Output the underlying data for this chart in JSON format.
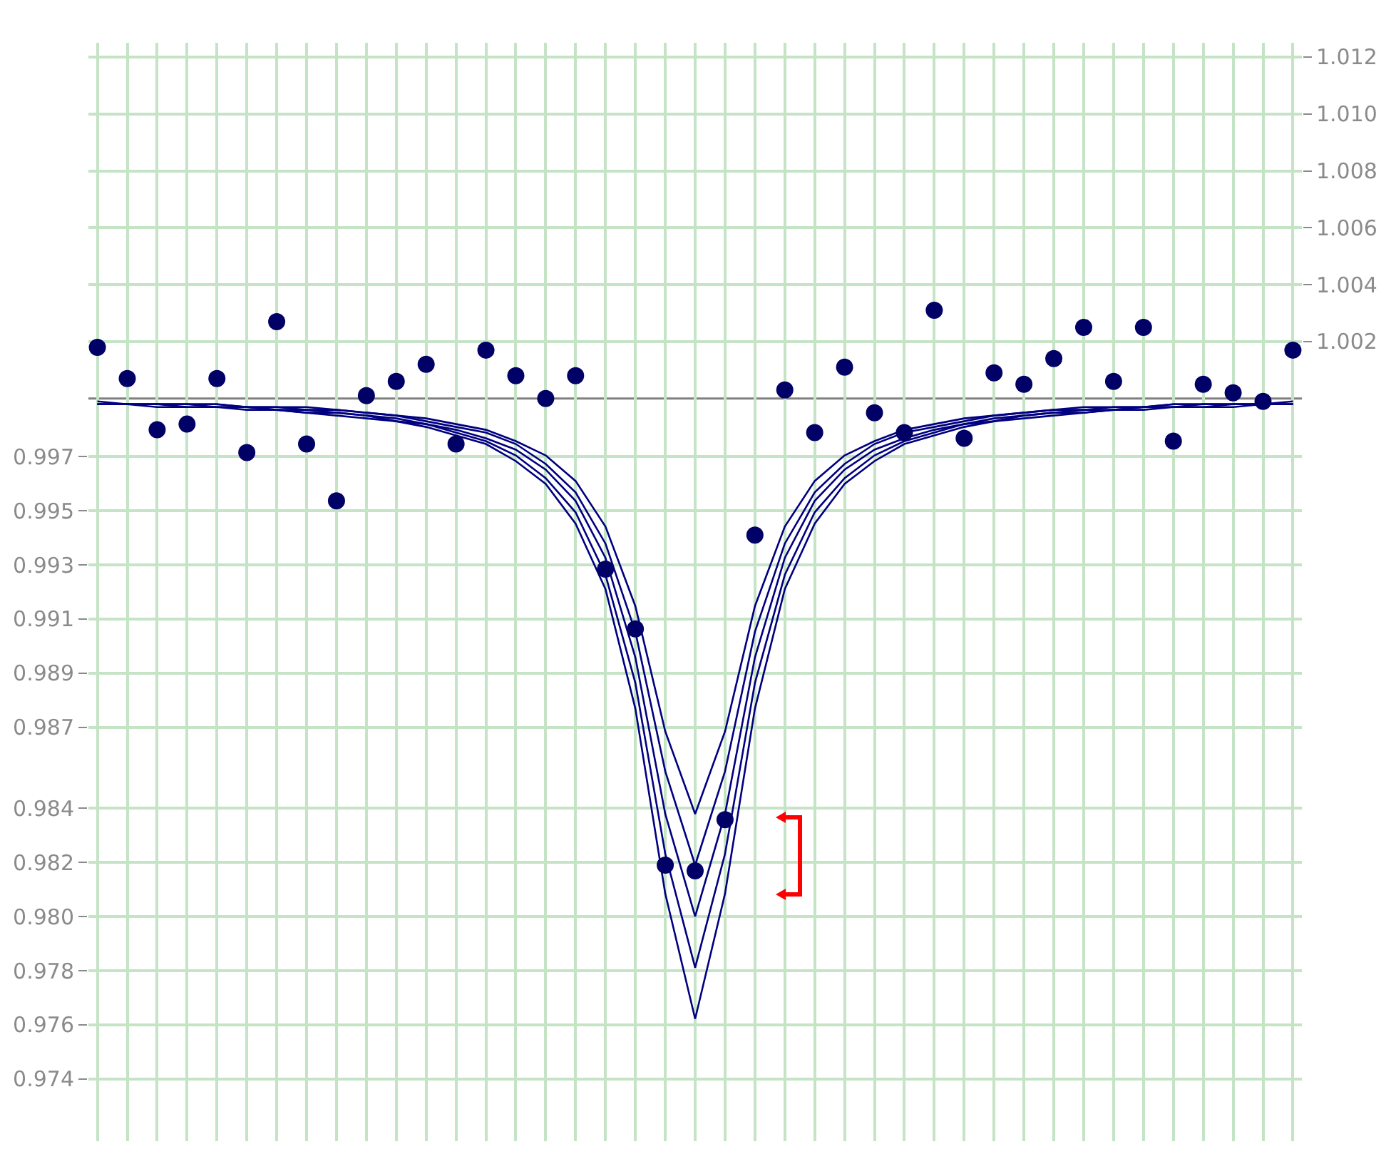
{
  "chart_data": {
    "type": "scatter",
    "categories": [
      null,
      null,
      null,
      null,
      null,
      null,
      null,
      null,
      null,
      null,
      null,
      null,
      null,
      null,
      null,
      null,
      null,
      null,
      null,
      null,
      null,
      null,
      null,
      null,
      null,
      null,
      null,
      null,
      null,
      null,
      null,
      null,
      null,
      null,
      null,
      null,
      null,
      null,
      null,
      null,
      null
    ],
    "ylim": [
      0.9717,
      1.0123
    ],
    "yticks": [
      0.997,
      0.995,
      0.993,
      0.991,
      0.989,
      0.987,
      0.984,
      0.982,
      {
        "value": 0.98,
        "label": "0.980"
      },
      0.978,
      0.976,
      0.974
    ],
    "y2lim": [
      0.9739,
      1.0125
    ],
    "y2ticks": [
      1.012,
      {
        "value": 1.01,
        "label": "1.010"
      },
      1.008,
      1.006,
      1.004,
      1.002
    ],
    "grid": true,
    "ref_lines": [
      {
        "axis": "y2",
        "value": 1.0,
        "color": "#808080"
      }
    ],
    "series": [
      {
        "type": "line",
        "axis": "y2",
        "color": "#000080",
        "marker": "none",
        "values": [
          0.9999,
          0.9998,
          0.9998,
          0.9998,
          0.9998,
          0.9997,
          0.9997,
          0.9997,
          0.9996,
          0.9995,
          0.9994,
          0.9993,
          0.9991,
          0.9989,
          0.9985,
          0.998,
          0.9971,
          0.9955,
          0.9927,
          0.9883,
          0.9854,
          0.9883,
          0.9927,
          0.9955,
          0.9971,
          0.998,
          0.9985,
          0.9989,
          0.9991,
          0.9993,
          0.9994,
          0.9995,
          0.9996,
          0.9997,
          0.9997,
          0.9997,
          0.9998,
          0.9998,
          0.9998,
          0.9998,
          0.9999
        ]
      },
      {
        "type": "line",
        "axis": "y2",
        "color": "#000080",
        "marker": "none",
        "values": [
          0.9998,
          0.9998,
          0.9998,
          0.9998,
          0.9998,
          0.9997,
          0.9997,
          0.9996,
          0.9996,
          0.9995,
          0.9994,
          0.9992,
          0.999,
          0.9988,
          0.9984,
          0.9977,
          0.9967,
          0.9949,
          0.9918,
          0.9869,
          0.9836,
          0.9869,
          0.9918,
          0.9949,
          0.9967,
          0.9977,
          0.9984,
          0.9988,
          0.999,
          0.9992,
          0.9994,
          0.9995,
          0.9996,
          0.9996,
          0.9997,
          0.9997,
          0.9998,
          0.9998,
          0.9998,
          0.9998,
          0.9998
        ]
      },
      {
        "type": "line",
        "axis": "y2",
        "color": "#000080",
        "marker": "none",
        "values": [
          0.9998,
          0.9998,
          0.9998,
          0.9998,
          0.9997,
          0.9997,
          0.9996,
          0.9996,
          0.9995,
          0.9994,
          0.9993,
          0.9991,
          0.9989,
          0.9986,
          0.9982,
          0.9975,
          0.9964,
          0.9944,
          0.9909,
          0.9854,
          0.9818,
          0.9854,
          0.9909,
          0.9944,
          0.9964,
          0.9975,
          0.9982,
          0.9986,
          0.9989,
          0.9991,
          0.9993,
          0.9994,
          0.9995,
          0.9996,
          0.9996,
          0.9997,
          0.9997,
          0.9998,
          0.9998,
          0.9998,
          0.9998
        ]
      },
      {
        "type": "line",
        "axis": "y2",
        "color": "#000080",
        "marker": "none",
        "values": [
          0.9998,
          0.9998,
          0.9998,
          0.9997,
          0.9997,
          0.9997,
          0.9996,
          0.9995,
          0.9995,
          0.9994,
          0.9992,
          0.9991,
          0.9988,
          0.9985,
          0.998,
          0.9972,
          0.996,
          0.9938,
          0.99,
          0.984,
          0.98,
          0.984,
          0.99,
          0.9938,
          0.996,
          0.9972,
          0.998,
          0.9985,
          0.9988,
          0.9991,
          0.9992,
          0.9994,
          0.9995,
          0.9995,
          0.9996,
          0.9997,
          0.9997,
          0.9997,
          0.9998,
          0.9998,
          0.9998
        ]
      },
      {
        "type": "line",
        "axis": "y2",
        "color": "#000080",
        "marker": "none",
        "values": [
          0.9998,
          0.9998,
          0.9997,
          0.9997,
          0.9997,
          0.9996,
          0.9996,
          0.9995,
          0.9994,
          0.9993,
          0.9992,
          0.999,
          0.9987,
          0.9984,
          0.9978,
          0.997,
          0.9956,
          0.9933,
          0.9891,
          0.9826,
          0.9782,
          0.9826,
          0.9891,
          0.9933,
          0.9956,
          0.997,
          0.9978,
          0.9984,
          0.9987,
          0.999,
          0.9992,
          0.9993,
          0.9994,
          0.9995,
          0.9996,
          0.9996,
          0.9997,
          0.9997,
          0.9997,
          0.9998,
          0.9998
        ]
      },
      {
        "axis": "y2",
        "color": "#000066",
        "marker": "circle",
        "values": [
          1.0018,
          1.0007,
          0.9989,
          0.9991,
          1.0007,
          0.9981,
          1.0027,
          0.9984,
          0.9964,
          1.0001,
          1.0006,
          1.0012,
          0.9984,
          1.0017,
          1.0008,
          1.0,
          1.0008,
          0.994,
          0.9919,
          0.9836,
          0.9834,
          0.9852,
          0.9952,
          1.0003,
          0.9988,
          1.0011,
          0.9995,
          0.9988,
          1.0031,
          0.9986,
          1.0009,
          1.0005,
          1.0014,
          1.0025,
          1.0006,
          1.0025,
          0.9985,
          1.0005,
          1.0002,
          0.9999,
          1.0017
        ]
      }
    ]
  }
}
